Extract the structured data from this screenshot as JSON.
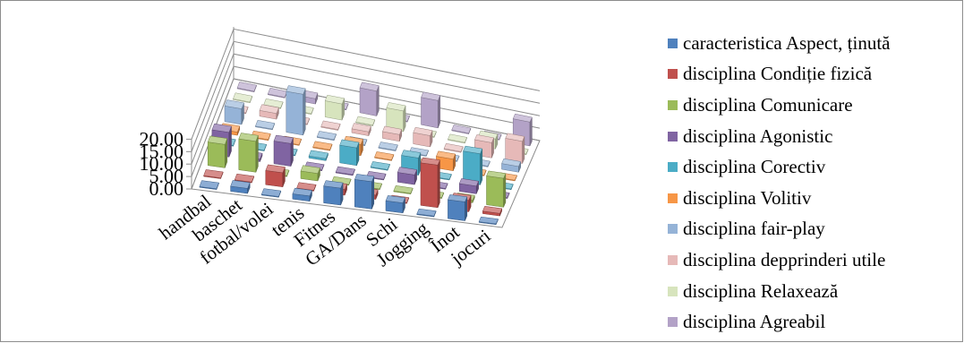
{
  "chart_data": {
    "type": "bar",
    "subtype": "3d-clustered-column",
    "categories": [
      "handbal",
      "baschet",
      "fotbal/volei",
      "tenis",
      "Fitnes",
      "GA/Dans",
      "Schi",
      "Jogging",
      "Înot",
      "jocuri"
    ],
    "y_ticks": [
      "0.00",
      "5.00",
      "10.00",
      "15.00",
      "20.00"
    ],
    "ylim": [
      0,
      20
    ],
    "grid": true,
    "legend_position": "right",
    "series": [
      {
        "name": "caracteristica Aspect, ținută",
        "color": "#4f81bd",
        "values": [
          0.3,
          2.0,
          0.3,
          2.1,
          6.8,
          11.0,
          4.0,
          0.3,
          7.6,
          0.3
        ]
      },
      {
        "name": "disciplina Condiție fizică",
        "color": "#c0504d",
        "values": [
          0.3,
          0.3,
          5.7,
          0.3,
          2.3,
          1.7,
          0.3,
          17.1,
          4.6,
          1.0
        ]
      },
      {
        "name": "disciplina  Comunicare",
        "color": "#9bbb59",
        "values": [
          9.4,
          12.4,
          0.3,
          3.0,
          0.3,
          0.3,
          0.3,
          0.3,
          1.0,
          11.6
        ]
      },
      {
        "name": "disciplina Agonistic",
        "color": "#8064a2",
        "values": [
          9.9,
          1.0,
          9.1,
          0.3,
          0.3,
          0.3,
          3.9,
          0.3,
          3.1,
          0.3
        ]
      },
      {
        "name": "disciplina Corectiv",
        "color": "#4bacc6",
        "values": [
          0.3,
          0.3,
          0.3,
          0.8,
          7.1,
          0.3,
          6.9,
          0.3,
          12.5,
          0.3
        ]
      },
      {
        "name": "disciplina  Volitiv",
        "color": "#f79646",
        "values": [
          1.3,
          0.3,
          0.3,
          0.3,
          4.4,
          0.3,
          0.3,
          4.7,
          0.3,
          0.3
        ]
      },
      {
        "name": "disciplina  fair-play",
        "color": "#95b3d7",
        "values": [
          6.3,
          0.3,
          16.4,
          0.3,
          0.3,
          0.3,
          0.3,
          0.3,
          0.3,
          2.3
        ]
      },
      {
        "name": "disciplina  depprinderi utile",
        "color": "#e6b9b8",
        "values": [
          0.3,
          2.3,
          0.3,
          0.3,
          1.6,
          2.7,
          4.5,
          0.3,
          6.1,
          8.9
        ]
      },
      {
        "name": "disciplina Relaxează",
        "color": "#d7e4bd",
        "values": [
          0.3,
          0.3,
          0.3,
          6.5,
          0.3,
          8.3,
          0.3,
          0.3,
          4.0,
          0.3
        ]
      },
      {
        "name": "disciplina Agreabil",
        "color": "#b3a2c7",
        "values": [
          0.3,
          0.3,
          2.1,
          0.3,
          10.0,
          0.3,
          11.0,
          0.3,
          0.3,
          9.6
        ]
      }
    ]
  }
}
